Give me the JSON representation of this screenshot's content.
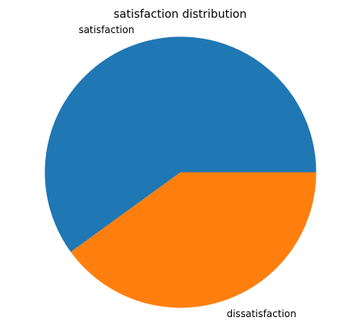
{
  "chart_data": {
    "type": "pie",
    "title": "satisfaction distribution",
    "slices": [
      {
        "label": "satisfaction",
        "value": 60,
        "color": "#1f77b4"
      },
      {
        "label": "dissatisfaction",
        "value": 40,
        "color": "#ff7f0e"
      }
    ],
    "start_angle_deg": 0,
    "direction": "counterclockwise",
    "legend": "none"
  }
}
